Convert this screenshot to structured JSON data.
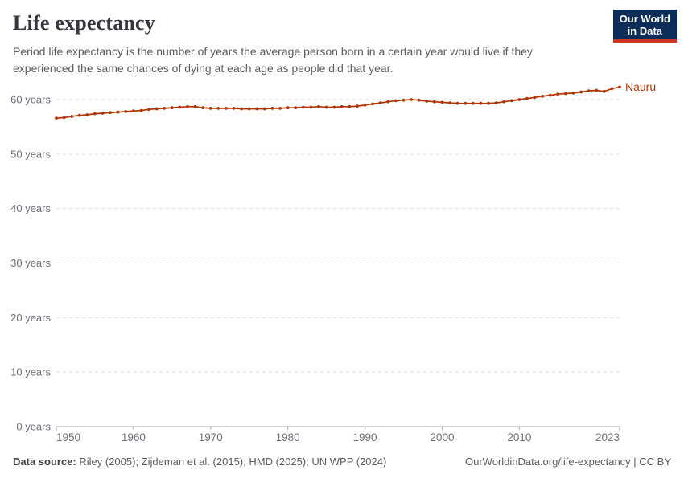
{
  "header": {
    "title": "Life expectancy",
    "subtitle": "Period life expectancy is the number of years the average person born in a certain year would live if they experienced the same chances of dying at each age as people did that year."
  },
  "logo": {
    "line1": "Our World",
    "line2": "in Data",
    "bg_color": "#0d2d59",
    "accent_color": "#cc3425",
    "text_color": "#ffffff"
  },
  "chart_data": {
    "type": "line",
    "title": "Life expectancy",
    "xlabel": "",
    "ylabel": "",
    "xlim": [
      1950,
      2023
    ],
    "ylim": [
      0,
      65
    ],
    "grid": "horizontal-dashed",
    "legend_position": "end-of-line-label",
    "x_ticks": [
      1950,
      1960,
      1970,
      1980,
      1990,
      2000,
      2010,
      2023
    ],
    "y_ticks": [
      0,
      10,
      20,
      30,
      40,
      50,
      60
    ],
    "y_tick_suffix": " years",
    "series": [
      {
        "name": "Nauru",
        "color": "#b13507",
        "x": [
          1950,
          1951,
          1952,
          1953,
          1954,
          1955,
          1956,
          1957,
          1958,
          1959,
          1960,
          1961,
          1962,
          1963,
          1964,
          1965,
          1966,
          1967,
          1968,
          1969,
          1970,
          1971,
          1972,
          1973,
          1974,
          1975,
          1976,
          1977,
          1978,
          1979,
          1980,
          1981,
          1982,
          1983,
          1984,
          1985,
          1986,
          1987,
          1988,
          1989,
          1990,
          1991,
          1992,
          1993,
          1994,
          1995,
          1996,
          1997,
          1998,
          1999,
          2000,
          2001,
          2002,
          2003,
          2004,
          2005,
          2006,
          2007,
          2008,
          2009,
          2010,
          2011,
          2012,
          2013,
          2014,
          2015,
          2016,
          2017,
          2018,
          2019,
          2020,
          2021,
          2022,
          2023
        ],
        "values": [
          56.6,
          56.7,
          56.9,
          57.1,
          57.2,
          57.4,
          57.5,
          57.6,
          57.7,
          57.8,
          57.9,
          58.0,
          58.2,
          58.3,
          58.4,
          58.5,
          58.6,
          58.7,
          58.7,
          58.5,
          58.4,
          58.4,
          58.4,
          58.4,
          58.3,
          58.3,
          58.3,
          58.3,
          58.4,
          58.4,
          58.5,
          58.5,
          58.6,
          58.6,
          58.7,
          58.6,
          58.6,
          58.7,
          58.7,
          58.8,
          59.0,
          59.2,
          59.4,
          59.6,
          59.8,
          59.9,
          60.0,
          59.9,
          59.7,
          59.6,
          59.5,
          59.4,
          59.3,
          59.3,
          59.3,
          59.3,
          59.3,
          59.4,
          59.6,
          59.8,
          60.0,
          60.2,
          60.4,
          60.6,
          60.8,
          61.0,
          61.1,
          61.2,
          61.4,
          61.6,
          61.7,
          61.5,
          62.0,
          62.3
        ]
      }
    ],
    "colors": {
      "grid": "#dedede",
      "axis": "#a9a9a9",
      "tick_label": "#6e6e76"
    }
  },
  "footer": {
    "sources_label": "Data source:",
    "sources_text": " Riley (2005); Zijdeman et al. (2015); HMD (2025); UN WPP (2024)",
    "link_text": "OurWorldinData.org/life-expectancy | CC BY"
  }
}
